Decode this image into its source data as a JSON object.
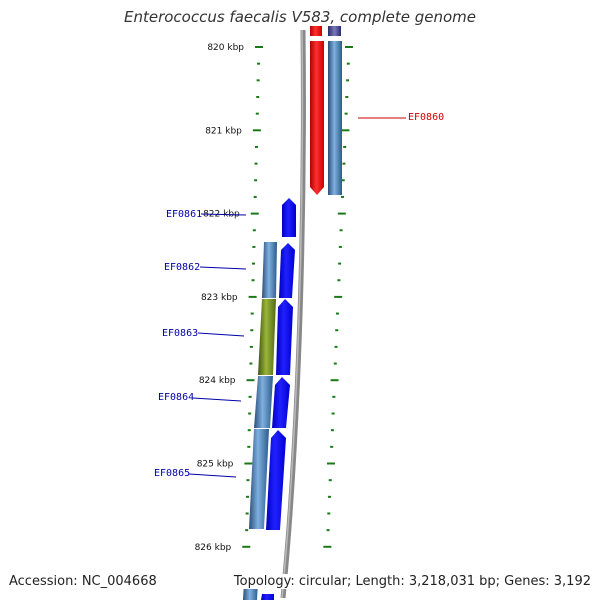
{
  "title": "Enterococcus faecalis V583, complete genome",
  "footer": {
    "accession": "Accession: NC_004668",
    "summary": "Topology: circular; Length: 3,218,031 bp; Genes: 3,192"
  },
  "ticks": [
    "820 kbp",
    "821 kbp",
    "822 kbp",
    "823 kbp",
    "824 kbp",
    "825 kbp",
    "826 kbp"
  ],
  "genes": [
    {
      "id": "EF0860",
      "color": "#cc0000"
    },
    {
      "id": "EF0861",
      "color": "#0000aa"
    },
    {
      "id": "EF0862",
      "color": "#0000aa"
    },
    {
      "id": "EF0863",
      "color": "#0000aa"
    },
    {
      "id": "EF0864",
      "color": "#0000aa"
    },
    {
      "id": "EF0865",
      "color": "#0000aa"
    }
  ],
  "colors": {
    "forward_cds": "#0000ff",
    "highlight_cds": "#ff0000",
    "feature_blue": "#4a7fb5",
    "feature_olive": "#6e8a1e",
    "backbone": "#888888",
    "tick_marks": "#1a7a1a"
  }
}
